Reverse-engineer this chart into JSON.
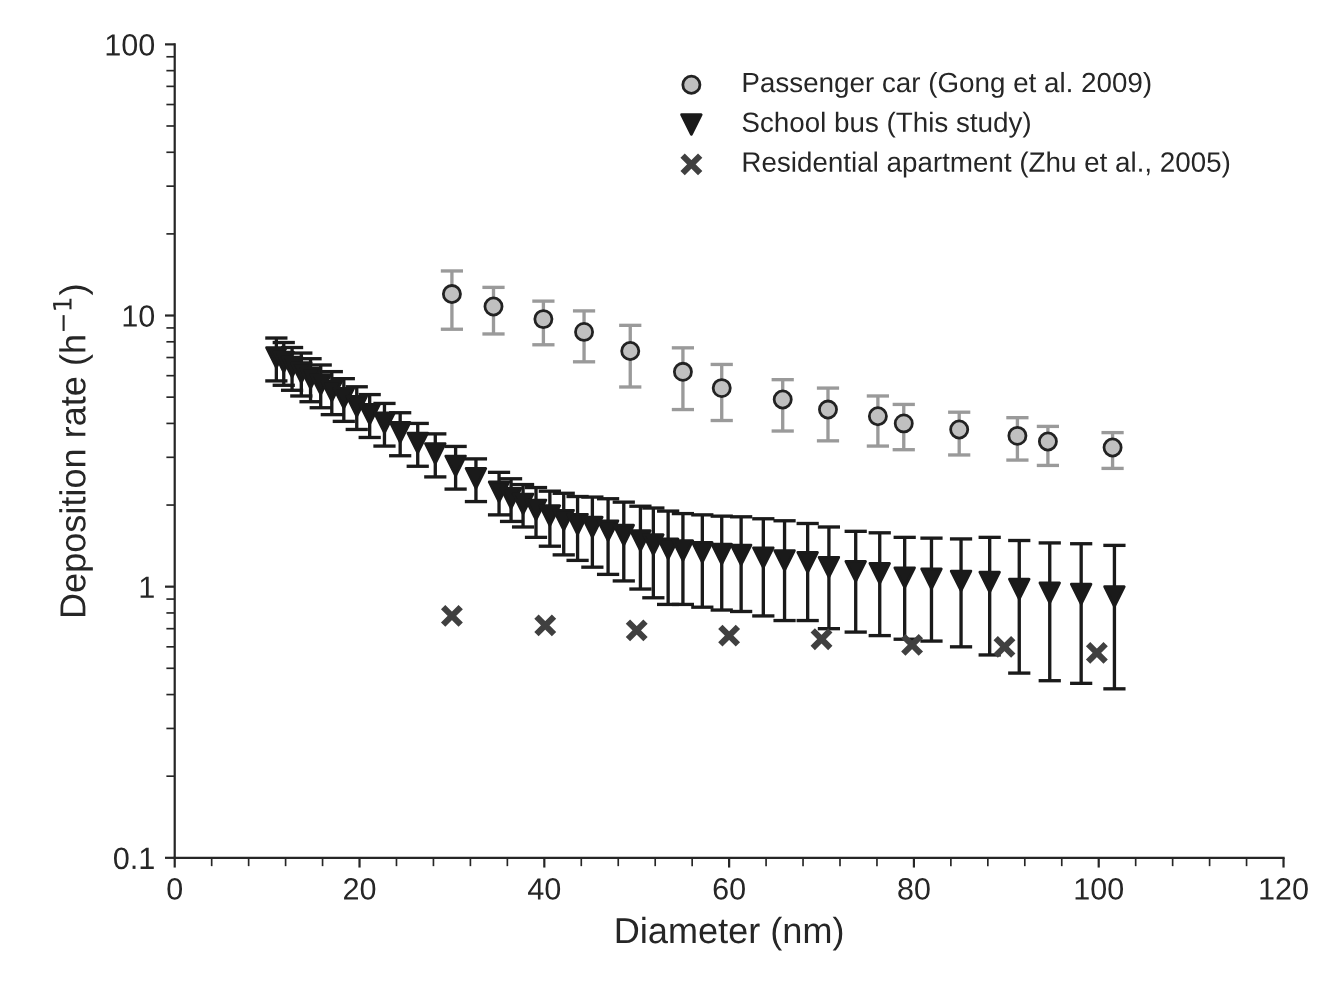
{
  "chart_data": {
    "type": "scatter",
    "xlabel": "Diameter (nm)",
    "ylabel": "Deposition rate (h$^{−1}$)",
    "log": "y",
    "grid": false,
    "legend": "top right",
    "xlim": [
      0,
      120
    ],
    "xticks": [
      0,
      20,
      40,
      60,
      80,
      100,
      120
    ],
    "ylim": [
      0.1,
      100
    ],
    "yticks": [
      0.1,
      1,
      10,
      100
    ],
    "series": [
      {
        "name": "Passenger car (Gong et al. 2009)",
        "color": "#c0c0c0",
        "marker": "circle",
        "x": [
          30,
          34.5,
          39.9,
          44.3,
          49.3,
          55,
          59.2,
          65.8,
          70.7,
          76.1,
          78.9,
          84.9,
          91.2,
          94.5,
          101.5
        ],
        "values": [
          12,
          10.8,
          9.7,
          8.7,
          7.4,
          6.2,
          5.4,
          4.9,
          4.5,
          4.25,
          4.0,
          3.8,
          3.6,
          3.43,
          3.26
        ],
        "errors": [
          [
            8.9,
            14.6
          ],
          [
            8.55,
            12.7
          ],
          [
            7.8,
            11.3
          ],
          [
            6.75,
            10.4
          ],
          [
            5.45,
            9.2
          ],
          [
            4.5,
            7.6
          ],
          [
            4.1,
            6.6
          ],
          [
            3.75,
            5.8
          ],
          [
            3.45,
            5.4
          ],
          [
            3.3,
            5.05
          ],
          [
            3.2,
            4.7
          ],
          [
            3.06,
            4.4
          ],
          [
            2.93,
            4.2
          ],
          [
            2.8,
            3.9
          ],
          [
            2.73,
            3.7
          ]
        ]
      },
      {
        "name": "School bus (This study)",
        "color": "#1a1a1a",
        "marker": "triangle",
        "x": [
          11.0,
          11.8,
          12.7,
          13.7,
          14.7,
          15.8,
          17.0,
          18.3,
          19.7,
          21.1,
          22.7,
          24.4,
          26.3,
          28.2,
          30.4,
          32.6,
          35.1,
          36.4,
          37.7,
          39.1,
          40.6,
          42.1,
          43.6,
          45.2,
          46.9,
          48.6,
          50.4,
          51.8,
          53.4,
          55,
          57.1,
          59.2,
          61.3,
          63.7,
          66,
          68.5,
          70.8,
          73.7,
          76.3,
          79,
          81.9,
          85.1,
          88.2,
          91.4,
          94.7,
          98.1,
          101.7
        ],
        "values": [
          7.0,
          6.74,
          6.46,
          6.16,
          5.87,
          5.57,
          5.26,
          4.96,
          4.63,
          4.33,
          4.02,
          3.71,
          3.39,
          3.1,
          2.79,
          2.51,
          2.24,
          2.12,
          2.02,
          1.92,
          1.83,
          1.76,
          1.7,
          1.66,
          1.61,
          1.55,
          1.48,
          1.43,
          1.38,
          1.36,
          1.34,
          1.32,
          1.31,
          1.28,
          1.25,
          1.23,
          1.18,
          1.14,
          1.12,
          1.08,
          1.07,
          1.05,
          1.04,
          0.98,
          0.95,
          0.94,
          0.92
        ],
        "errors": [
          1.26,
          1.21,
          1.16,
          1.11,
          1.06,
          1.0,
          0.95,
          0.89,
          0.83,
          0.78,
          0.72,
          0.67,
          0.61,
          0.56,
          0.5,
          0.45,
          0.4,
          0.38,
          0.36,
          0.4,
          0.42,
          0.45,
          0.45,
          0.48,
          0.5,
          0.5,
          0.5,
          0.52,
          0.52,
          0.5,
          0.5,
          0.5,
          0.5,
          0.5,
          0.5,
          0.48,
          0.48,
          0.46,
          0.46,
          0.44,
          0.44,
          0.45,
          0.48,
          0.5,
          0.5,
          0.5,
          0.5
        ]
      },
      {
        "name": "Residential apartment (Zhu et al., 2005)",
        "color": "#404040",
        "marker": "cross",
        "x": [
          30,
          40.1,
          50,
          60,
          70,
          79.8,
          89.8,
          99.8
        ],
        "values": [
          0.78,
          0.72,
          0.69,
          0.66,
          0.64,
          0.61,
          0.6,
          0.57
        ]
      }
    ]
  }
}
